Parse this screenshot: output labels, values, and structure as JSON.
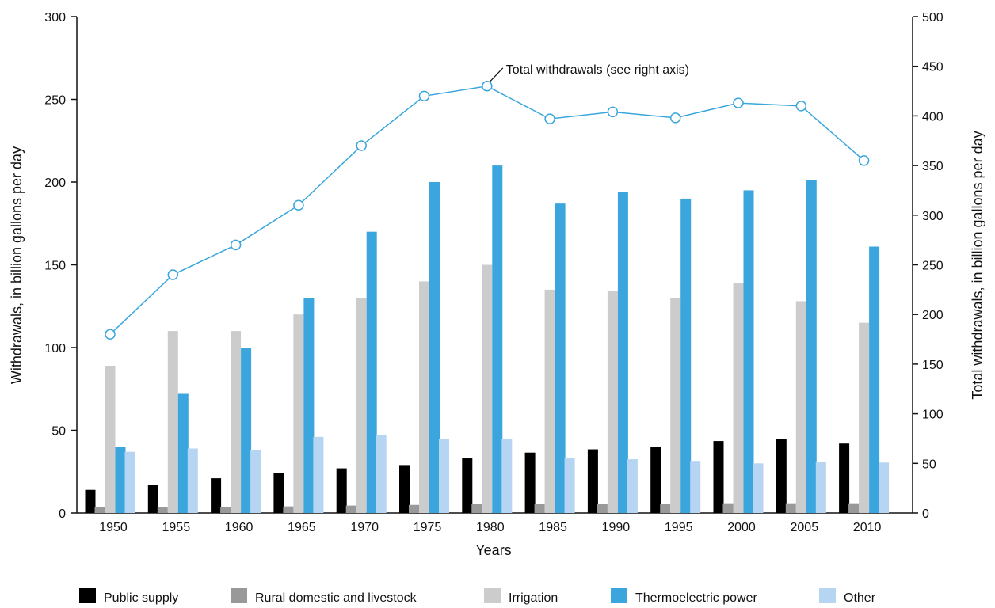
{
  "chart_data": {
    "type": "bar",
    "x": [
      "1950",
      "1955",
      "1960",
      "1965",
      "1970",
      "1975",
      "1980",
      "1985",
      "1990",
      "1995",
      "2000",
      "2005",
      "2010"
    ],
    "xlabel": "Years",
    "ylabel": "Withdrawals, in billion gallons per day",
    "ylim": [
      0,
      300
    ],
    "yticks": [
      0,
      50,
      100,
      150,
      200,
      250,
      300
    ],
    "y2label": "Total withdrawals, in billion gallons per day",
    "y2lim": [
      0,
      500
    ],
    "y2ticks": [
      0,
      50,
      100,
      150,
      200,
      250,
      300,
      350,
      400,
      450,
      500
    ],
    "legend_position": "bottom",
    "grid": false,
    "series": [
      {
        "name": "Public supply",
        "color": "#000000",
        "axis": "left",
        "kind": "bar",
        "values": [
          14,
          17,
          21,
          24,
          27,
          29,
          33,
          36.5,
          38.5,
          40,
          43.5,
          44.5,
          42
        ]
      },
      {
        "name": "Rural domestic and livestock",
        "color": "#999999",
        "axis": "left",
        "kind": "bar",
        "values": [
          3.6,
          3.6,
          3.6,
          4,
          4.5,
          4.9,
          5.6,
          5.6,
          5.5,
          5.5,
          5.9,
          5.9,
          5.9
        ]
      },
      {
        "name": "Irrigation",
        "color": "#cccccc",
        "axis": "left",
        "kind": "bar",
        "values": [
          89,
          110,
          110,
          120,
          130,
          140,
          150,
          135,
          134,
          130,
          139,
          128,
          115
        ]
      },
      {
        "name": "Thermoelectric power",
        "color": "#3aa6dd",
        "axis": "left",
        "kind": "bar",
        "values": [
          40,
          72,
          100,
          130,
          170,
          200,
          210,
          187,
          194,
          190,
          195,
          201,
          161
        ]
      },
      {
        "name": "Other",
        "color": "#b5d5f2",
        "axis": "left",
        "kind": "bar",
        "values": [
          37,
          39,
          38,
          46,
          47,
          45,
          45,
          33,
          32.5,
          31.5,
          30,
          31,
          30.5
        ]
      },
      {
        "kind": "line",
        "axis": "right",
        "color": "#3aa6dd",
        "values": [
          180,
          240,
          270,
          310,
          370,
          420,
          430,
          397,
          404,
          398,
          413,
          410,
          355
        ]
      }
    ],
    "annotation": {
      "text": "Total withdrawals  (see right axis)",
      "points_to": "1980"
    }
  },
  "colors": {
    "public_supply": "#000000",
    "rural": "#999999",
    "irrigation": "#cccccc",
    "thermoelectric": "#3aa6dd",
    "other": "#b5d5f2",
    "total_line": "#3aa6dd"
  }
}
